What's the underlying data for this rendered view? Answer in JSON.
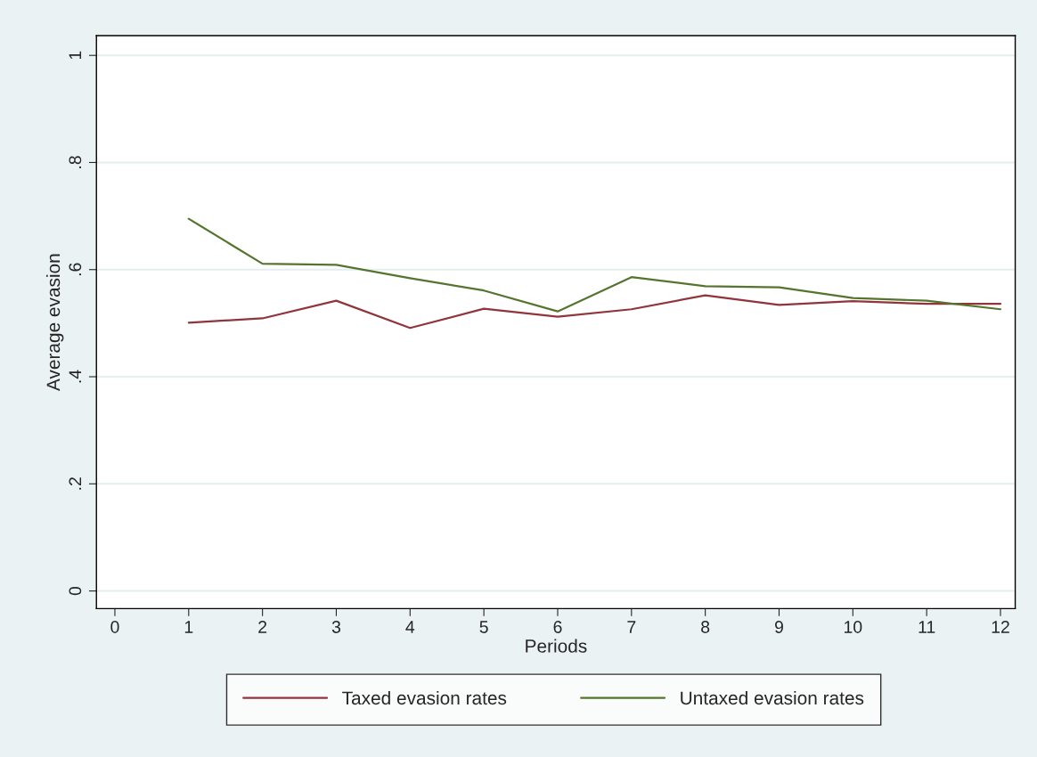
{
  "chart_data": {
    "type": "line",
    "xlabel": "Periods",
    "ylabel": "Average evasion",
    "x": [
      1,
      2,
      3,
      4,
      5,
      6,
      7,
      8,
      9,
      10,
      11,
      12
    ],
    "series": [
      {
        "name": "Taxed evasion rates",
        "color": "#90353b",
        "values": [
          0.501,
          0.509,
          0.542,
          0.491,
          0.527,
          0.512,
          0.526,
          0.552,
          0.534,
          0.541,
          0.536,
          0.536
        ]
      },
      {
        "name": "Untaxed evasion rates",
        "color": "#55752f",
        "values": [
          0.695,
          0.611,
          0.609,
          0.584,
          0.561,
          0.522,
          0.586,
          0.569,
          0.567,
          0.547,
          0.542,
          0.526
        ]
      }
    ],
    "xlim": [
      -0.25,
      12.2
    ],
    "xticks": [
      0,
      1,
      2,
      3,
      4,
      5,
      6,
      7,
      8,
      9,
      10,
      11,
      12
    ],
    "ylim": [
      -0.033,
      1.037
    ],
    "yticks": [
      {
        "value": 0,
        "label": "0"
      },
      {
        "value": 0.2,
        "label": ".2"
      },
      {
        "value": 0.4,
        "label": ".4"
      },
      {
        "value": 0.6,
        "label": ".6"
      },
      {
        "value": 0.8,
        "label": ".8"
      },
      {
        "value": 1,
        "label": "1"
      }
    ],
    "grid": "y",
    "legend": "bottom",
    "marker": "none",
    "line_style": "solid"
  }
}
